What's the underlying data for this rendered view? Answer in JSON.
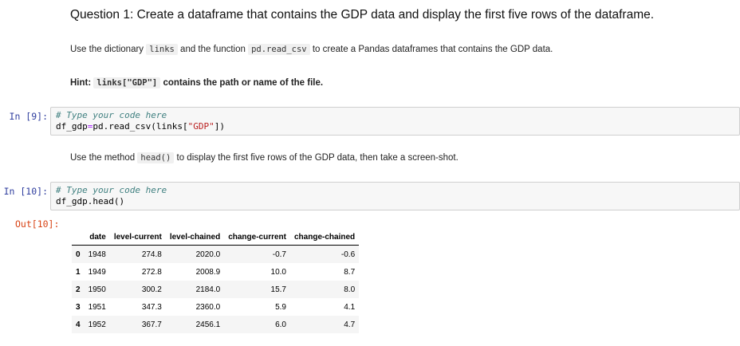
{
  "question": {
    "title": "Question 1: Create a dataframe that contains the GDP data and display the first five rows of the dataframe.",
    "instruction_pre": "Use the dictionary ",
    "instruction_code1": "links",
    "instruction_mid": " and the function ",
    "instruction_code2": "pd.read_csv",
    "instruction_post": " to create a Pandas dataframes that contains the GDP data.",
    "hint_label": "Hint: ",
    "hint_code": "links[\"GDP\"]",
    "hint_post": " contains the path or name of the file."
  },
  "cell1": {
    "prompt": "In [9]:",
    "comment": "# Type your code here",
    "line2_a": "df_gdp",
    "line2_op": "=",
    "line2_b": "pd.read_csv(links[",
    "line2_str": "\"GDP\"",
    "line2_c": "])"
  },
  "middle_text": {
    "pre": "Use the method ",
    "code": "head()",
    "post": " to display the first five rows of the GDP data, then take a screen-shot."
  },
  "cell2": {
    "prompt": "In [10]:",
    "comment": "# Type your code here",
    "line2": "df_gdp.head()"
  },
  "output": {
    "prompt": "Out[10]:",
    "columns": [
      "",
      "date",
      "level-current",
      "level-chained",
      "change-current",
      "change-chained"
    ],
    "rows": [
      [
        "0",
        "1948",
        "274.8",
        "2020.0",
        "-0.7",
        "-0.6"
      ],
      [
        "1",
        "1949",
        "272.8",
        "2008.9",
        "10.0",
        "8.7"
      ],
      [
        "2",
        "1950",
        "300.2",
        "2184.0",
        "15.7",
        "8.0"
      ],
      [
        "3",
        "1951",
        "347.3",
        "2360.0",
        "5.9",
        "4.1"
      ],
      [
        "4",
        "1952",
        "367.7",
        "2456.1",
        "6.0",
        "4.7"
      ]
    ]
  }
}
